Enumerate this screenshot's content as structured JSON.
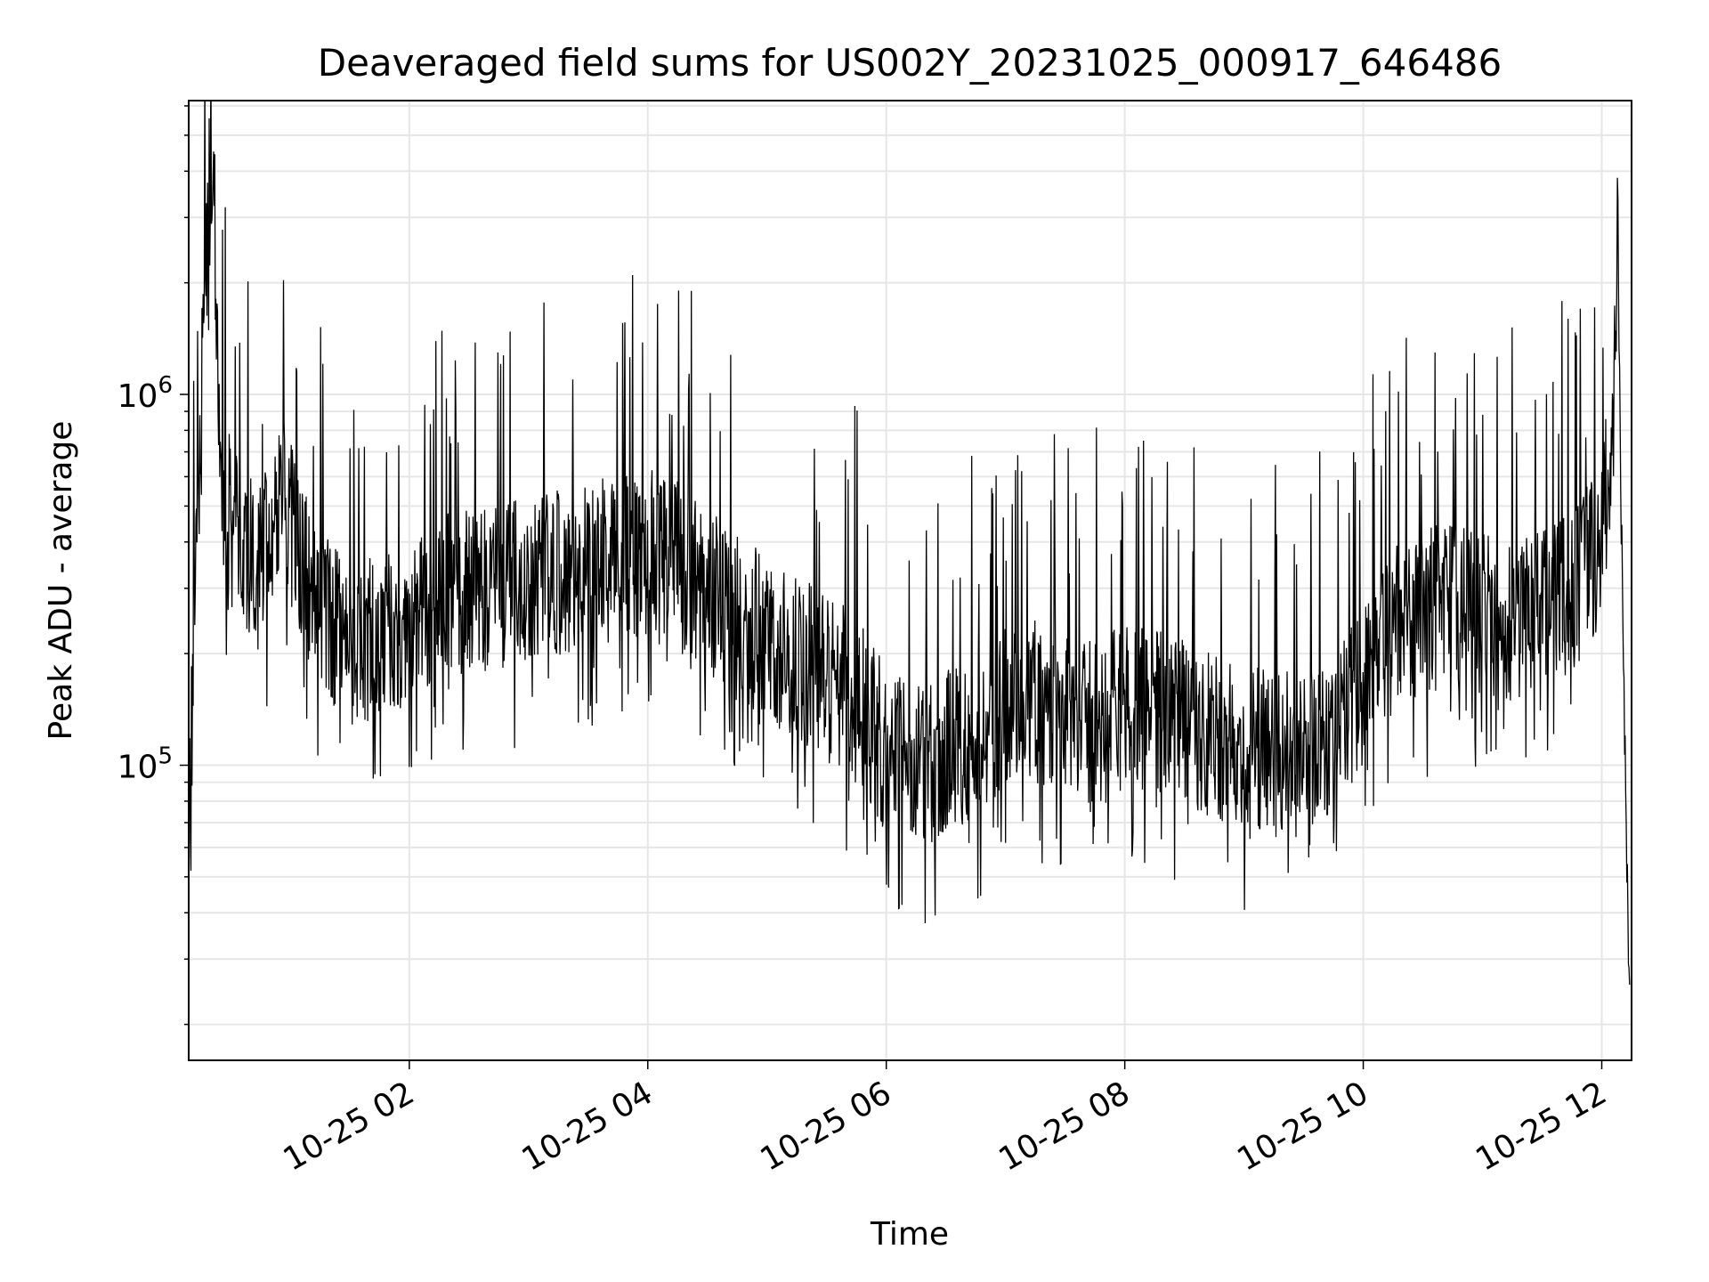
{
  "chart_data": {
    "type": "line",
    "title": "Deaveraged field sums for US002Y_20231025_000917_646486",
    "xlabel": "Time",
    "ylabel": "Peak ADU - average",
    "x_scale": "time",
    "y_scale": "log",
    "xlim": [
      "2023-10-25 00:09",
      "2023-10-25 12:15"
    ],
    "ylim": [
      16000,
      6200000
    ],
    "x_ticks": [
      "10-25 02",
      "10-25 04",
      "10-25 06",
      "10-25 08",
      "10-25 10",
      "10-25 12"
    ],
    "y_ticks": [
      {
        "base": "10",
        "exp": "5"
      },
      {
        "base": "10",
        "exp": "6"
      }
    ],
    "grid": true,
    "line_color": "#000000",
    "series": [
      {
        "x": [
          "2023-10-25 00:09",
          "2023-10-25 00:12",
          "2023-10-25 00:15",
          "2023-10-25 00:18",
          "2023-10-25 00:20",
          "2023-10-25 00:22",
          "2023-10-25 00:24",
          "2023-10-25 00:26",
          "2023-10-25 00:30",
          "2023-10-25 00:35",
          "2023-10-25 00:40",
          "2023-10-25 00:45",
          "2023-10-25 00:50",
          "2023-10-25 00:55",
          "2023-10-25 01:00",
          "2023-10-25 01:05",
          "2023-10-25 01:10",
          "2023-10-25 01:20",
          "2023-10-25 01:30",
          "2023-10-25 01:40",
          "2023-10-25 01:50",
          "2023-10-25 02:00",
          "2023-10-25 02:15",
          "2023-10-25 02:30",
          "2023-10-25 02:45",
          "2023-10-25 03:00",
          "2023-10-25 03:15",
          "2023-10-25 03:30",
          "2023-10-25 03:45",
          "2023-10-25 04:00",
          "2023-10-25 04:15",
          "2023-10-25 04:30",
          "2023-10-25 04:45",
          "2023-10-25 05:00",
          "2023-10-25 05:15",
          "2023-10-25 05:30",
          "2023-10-25 05:45",
          "2023-10-25 06:00",
          "2023-10-25 06:15",
          "2023-10-25 06:30",
          "2023-10-25 06:45",
          "2023-10-25 07:00",
          "2023-10-25 07:15",
          "2023-10-25 07:30",
          "2023-10-25 07:45",
          "2023-10-25 08:00",
          "2023-10-25 08:15",
          "2023-10-25 08:30",
          "2023-10-25 08:45",
          "2023-10-25 09:00",
          "2023-10-25 09:15",
          "2023-10-25 09:30",
          "2023-10-25 09:45",
          "2023-10-25 10:00",
          "2023-10-25 10:15",
          "2023-10-25 10:30",
          "2023-10-25 10:45",
          "2023-10-25 11:00",
          "2023-10-25 11:15",
          "2023-10-25 11:30",
          "2023-10-25 11:45",
          "2023-10-25 11:55",
          "2023-10-25 12:00",
          "2023-10-25 12:03",
          "2023-10-25 12:06",
          "2023-10-25 12:08",
          "2023-10-25 12:10",
          "2023-10-25 12:12",
          "2023-10-25 12:14"
        ],
        "y": [
          60000,
          300000,
          900000,
          2500000,
          5200000,
          3000000,
          1200000,
          600000,
          450000,
          400000,
          380000,
          350000,
          400000,
          550000,
          450000,
          350000,
          300000,
          250000,
          200000,
          220000,
          230000,
          250000,
          280000,
          300000,
          300000,
          320000,
          330000,
          350000,
          360000,
          380000,
          350000,
          300000,
          250000,
          220000,
          190000,
          180000,
          150000,
          110000,
          100000,
          110000,
          120000,
          140000,
          150000,
          140000,
          130000,
          150000,
          140000,
          130000,
          120000,
          110000,
          110000,
          105000,
          120000,
          170000,
          230000,
          260000,
          270000,
          260000,
          250000,
          270000,
          300000,
          350000,
          420000,
          600000,
          900000,
          3500000,
          400000,
          80000,
          25000
        ]
      }
    ]
  }
}
